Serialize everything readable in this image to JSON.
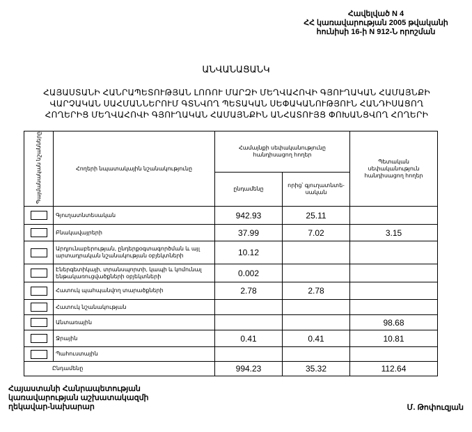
{
  "annex": {
    "line1": "Հավելված N 4",
    "line2": "ՀՀ կառավարության 2005 թվականի",
    "line3": "հունիսի 16-ի N 912-Ն որոշման"
  },
  "title": "ԱՆՎԱՆԱՑԱՆԿ",
  "subtitle": {
    "line1": "ՀԱՅԱՍՏԱՆԻ ՀԱՆՐԱՊԵՏՈՒԹՅԱՆ ԼՈՌՈՒ ՄԱՐԶԻ ՄԵՂՎԱՀՈՎԻ ԳՅՈՒՂԱԿԱՆ ՀԱՄԱՅՆՔԻ",
    "line2": "ՎԱՐՉԱԿԱՆ ՍԱՀՄԱՆՆԵՐՈՒՄ ԳՏՆՎՈՂ ՊԵՏԱԿԱՆ ՍԵՓԱԿԱՆՈՒԹՅՈՒՆ ՀԱՆԴԻՍԱՑՈՂ",
    "line3": "ՀՈՂԵՐԻՑ ՄԵՂՎԱՀՈՎԻ ԳՅՈՒՂԱԿԱՆ ՀԱՄԱՅՆՔԻՆ ԱՆՀԱՏՈՒՅՑ ՓՈԽԱՆՑՎՈՂ ՀՈՂԵՐԻ"
  },
  "table": {
    "headers": {
      "symbols": "Պայմանական նշանները",
      "purpose": "Հողերի նպատակային նշանակությունը",
      "community": "Համայնքի սեփականությունը հանդիսացող հողեր",
      "total": "ընդամենը",
      "of_which": "որից՝ գյուղատնտե- սական",
      "state": "Պետական սեփականություն հանդիսացող հողեր"
    },
    "rows": [
      {
        "label": "Գյուղատնտեսական",
        "total": "942.93",
        "of_which": "25.11",
        "state": ""
      },
      {
        "label": "Բնակավայրերի",
        "total": "37.99",
        "of_which": "7.02",
        "state": "3.15"
      },
      {
        "label": "Արդյունաբերության, ընդերքօգտագործման և այլ արտադրական նշանակության օբյեկտների",
        "total": "10.12",
        "of_which": "",
        "state": ""
      },
      {
        "label": "Էներգետիկայի, տրանսպորտի, կապի և կոմունալ ենթակառուցվածքների օբյեկտների",
        "total": "0.002",
        "of_which": "",
        "state": ""
      },
      {
        "label": "Հատուկ պահպանվող տարածքների",
        "total": "2.78",
        "of_which": "2.78",
        "state": ""
      },
      {
        "label": "Հատուկ նշանակության",
        "total": "",
        "of_which": "",
        "state": ""
      },
      {
        "label": "Անտառային",
        "total": "",
        "of_which": "",
        "state": "98.68"
      },
      {
        "label": "Ջրային",
        "total": "0.41",
        "of_which": "0.41",
        "state": "10.81"
      },
      {
        "label": "Պահուստային",
        "total": "",
        "of_which": "",
        "state": ""
      }
    ],
    "summary": {
      "label": "Ընդամենը",
      "total": "994.23",
      "of_which": "35.32",
      "state": "112.64"
    }
  },
  "footer": {
    "line1": "Հայաստանի Հանրապետության",
    "line2": "կառավարության աշխատակազմի",
    "line3": "ղեկավար-նախարար",
    "signatory": "Մ. Թոփուզյան"
  }
}
